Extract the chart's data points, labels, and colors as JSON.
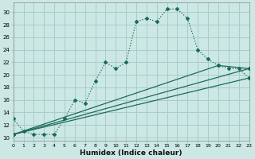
{
  "xlabel": "Humidex (Indice chaleur)",
  "bg_color": "#cce8e4",
  "grid_color": "#aaccca",
  "line_color": "#1a6b5a",
  "xlim": [
    0,
    23
  ],
  "ylim": [
    9.5,
    31.5
  ],
  "xticks": [
    0,
    1,
    2,
    3,
    4,
    5,
    6,
    7,
    8,
    9,
    10,
    11,
    12,
    13,
    14,
    15,
    16,
    17,
    18,
    19,
    20,
    21,
    22,
    23
  ],
  "yticks": [
    10,
    12,
    14,
    16,
    18,
    20,
    22,
    24,
    26,
    28,
    30
  ],
  "line1_x": [
    0,
    1,
    2,
    3,
    4,
    5,
    6,
    7,
    8,
    9,
    10,
    11,
    12,
    13,
    14,
    15,
    16,
    17,
    18,
    19,
    20,
    21,
    22,
    23
  ],
  "line1_y": [
    13,
    11,
    10.5,
    10.5,
    10.5,
    13,
    16,
    15.5,
    19,
    22,
    21,
    22,
    28.5,
    29,
    28.5,
    30.5,
    30.5,
    29,
    24,
    22.5,
    21.5,
    21,
    21,
    19.5
  ],
  "line2_x": [
    0,
    23
  ],
  "line2_y": [
    10.5,
    19.5
  ],
  "line3_x": [
    0,
    20,
    23
  ],
  "line3_y": [
    10.5,
    21.5,
    21
  ],
  "line4_x": [
    0,
    23
  ],
  "line4_y": [
    10.5,
    21
  ],
  "xlabel_fontsize": 6.5,
  "tick_fontsize": 5.0
}
